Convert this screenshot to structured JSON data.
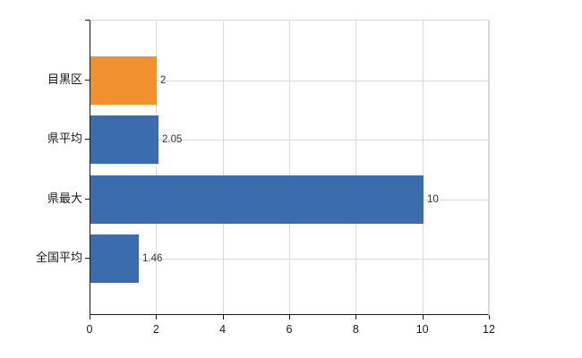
{
  "chart_data": {
    "type": "bar",
    "orientation": "horizontal",
    "title": "",
    "xlabel": "",
    "ylabel": "",
    "categories": [
      "目黒区",
      "県平均",
      "県最大",
      "全国平均"
    ],
    "values": [
      2,
      2.05,
      10,
      1.46
    ],
    "value_labels": [
      "2",
      "2.05",
      "10",
      "1.46"
    ],
    "bar_colors": [
      "#F0902F",
      "#3A6CAE",
      "#3A6CAE",
      "#3A6CAE"
    ],
    "highlight_color": "#F0902F",
    "base_color": "#3A6CAE",
    "xlim": [
      0,
      12
    ],
    "x_ticks": [
      0,
      2,
      4,
      6,
      8,
      10,
      12
    ],
    "x_tick_labels": [
      "0",
      "2",
      "4",
      "6",
      "8",
      "10",
      "12"
    ],
    "grid": true,
    "gridline_color": "#d9d9d9",
    "axis_color": "#1a1a1a",
    "legend": null
  }
}
